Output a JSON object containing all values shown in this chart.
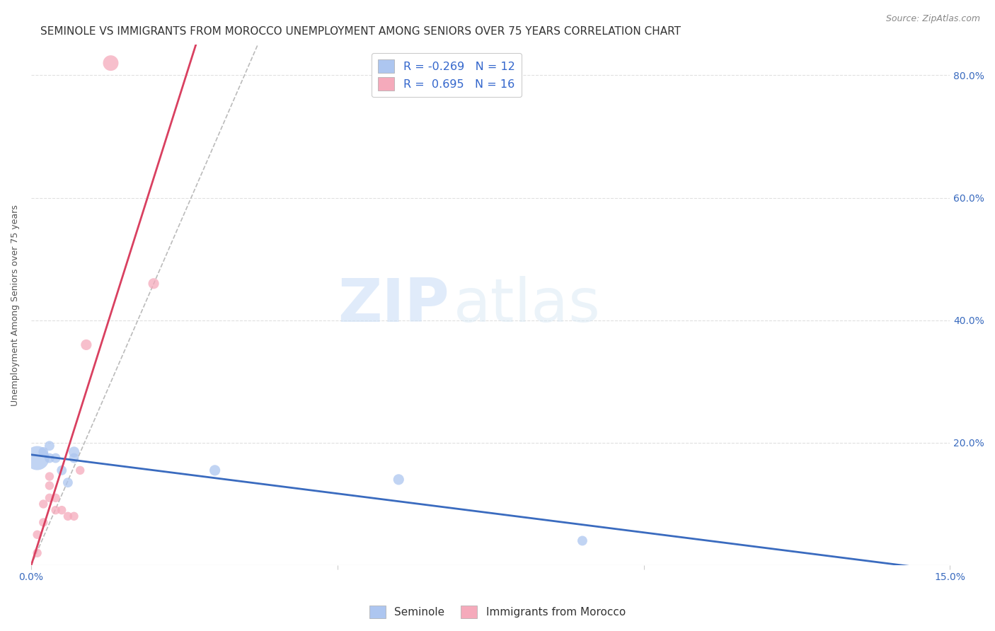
{
  "title": "SEMINOLE VS IMMIGRANTS FROM MOROCCO UNEMPLOYMENT AMONG SENIORS OVER 75 YEARS CORRELATION CHART",
  "source": "Source: ZipAtlas.com",
  "ylabel": "Unemployment Among Seniors over 75 years",
  "watermark_zip": "ZIP",
  "watermark_atlas": "atlas",
  "xlim": [
    0.0,
    0.15
  ],
  "ylim": [
    0.0,
    0.85
  ],
  "seminole_color": "#adc6f0",
  "morocco_color": "#f5aabb",
  "seminole_line_color": "#3a6bbf",
  "morocco_line_color": "#d94060",
  "legend_r_color": "#3366cc",
  "R_seminole": -0.269,
  "N_seminole": 12,
  "R_morocco": 0.695,
  "N_morocco": 16,
  "seminole_x": [
    0.001,
    0.002,
    0.003,
    0.003,
    0.004,
    0.005,
    0.006,
    0.007,
    0.007,
    0.03,
    0.06,
    0.09
  ],
  "seminole_y": [
    0.175,
    0.185,
    0.175,
    0.195,
    0.175,
    0.155,
    0.135,
    0.185,
    0.175,
    0.155,
    0.14,
    0.04
  ],
  "seminole_sizes": [
    600,
    100,
    100,
    100,
    100,
    100,
    100,
    120,
    100,
    120,
    120,
    100
  ],
  "morocco_x": [
    0.001,
    0.001,
    0.002,
    0.002,
    0.003,
    0.003,
    0.003,
    0.004,
    0.004,
    0.005,
    0.006,
    0.007,
    0.008,
    0.009,
    0.013,
    0.02
  ],
  "morocco_y": [
    0.02,
    0.05,
    0.07,
    0.1,
    0.11,
    0.13,
    0.145,
    0.11,
    0.09,
    0.09,
    0.08,
    0.08,
    0.155,
    0.36,
    0.82,
    0.46
  ],
  "morocco_sizes": [
    80,
    80,
    80,
    80,
    80,
    80,
    80,
    80,
    80,
    80,
    80,
    80,
    80,
    120,
    250,
    120
  ],
  "background_color": "#ffffff",
  "grid_color": "#e0e0e0",
  "title_fontsize": 11,
  "axis_label_fontsize": 9,
  "tick_fontsize": 10,
  "tick_color": "#3a6bbf",
  "source_fontsize": 9,
  "source_color": "#888888",
  "dash_line_x": [
    0.0,
    0.037
  ],
  "dash_line_y": [
    0.0,
    0.85
  ]
}
